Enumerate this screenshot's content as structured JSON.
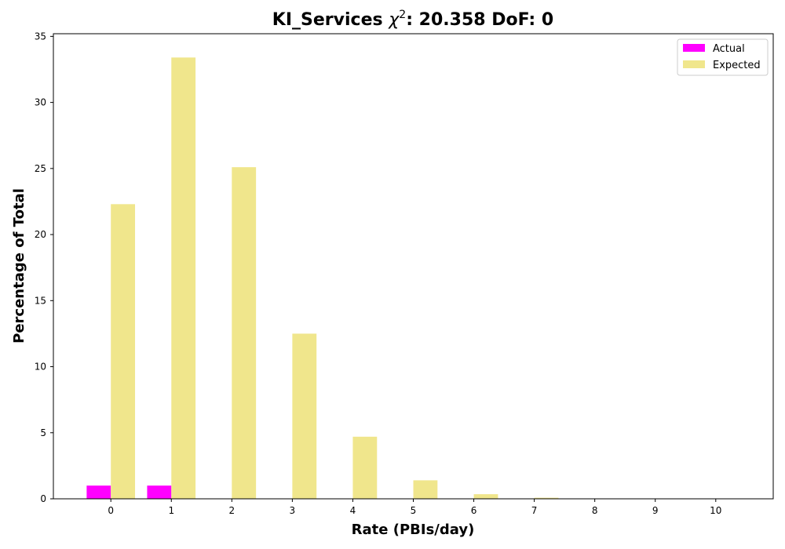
{
  "chart_data": {
    "type": "bar",
    "title": "KI_Services",
    "title_chi": "χ",
    "title_chi_exp": "2",
    "title_suffix": ": 20.358 DoF: 0",
    "xlabel": "Rate (PBIs/day)",
    "ylabel": "Percentage of Total",
    "categories": [
      "0",
      "1",
      "2",
      "3",
      "4",
      "5",
      "6",
      "7",
      "8",
      "9",
      "10"
    ],
    "xlim": [
      -0.95,
      10.95
    ],
    "ylim": [
      0,
      35.2
    ],
    "yticks": [
      0,
      5,
      10,
      15,
      20,
      25,
      30,
      35
    ],
    "legend_position": "top-right",
    "series": [
      {
        "name": "Actual",
        "color": "#ff00ff",
        "values": [
          1,
          1,
          0,
          0,
          0,
          0,
          0,
          0,
          0,
          0,
          0
        ]
      },
      {
        "name": "Expected",
        "color": "#f0e68c",
        "values": [
          22.3,
          33.4,
          25.1,
          12.5,
          4.7,
          1.4,
          0.35,
          0.08,
          0.02,
          0.0,
          0.0
        ]
      }
    ]
  }
}
